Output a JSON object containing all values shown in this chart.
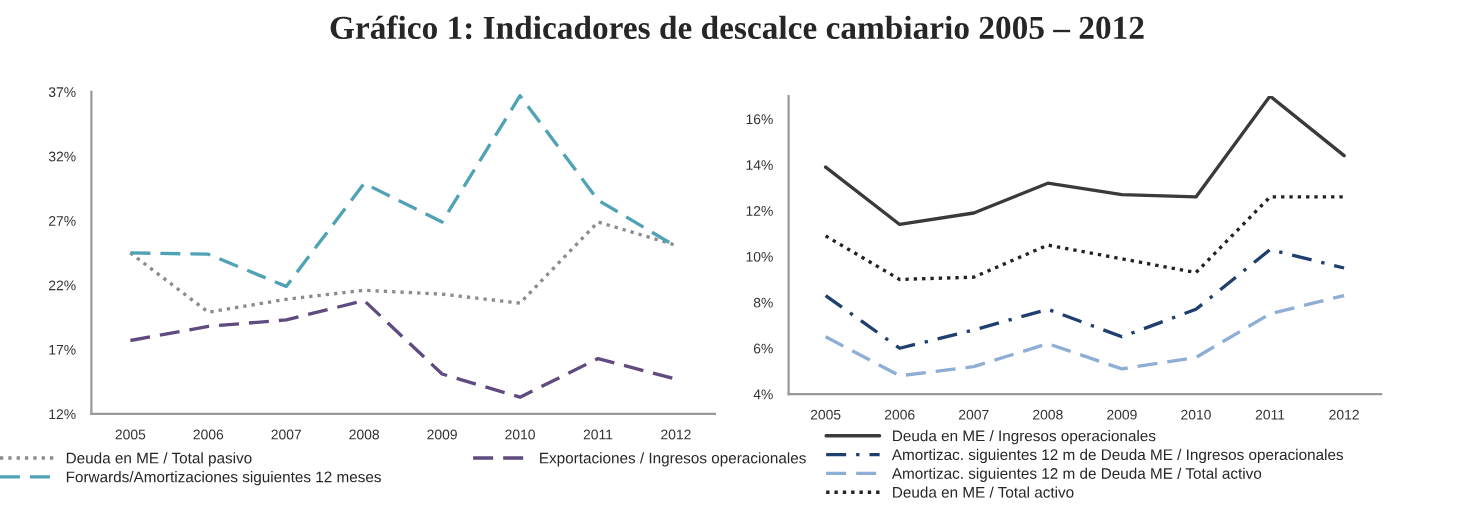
{
  "chart_data": [
    {
      "type": "line",
      "title": "Gráfico 1: Indicadores de descalce cambiario 2005 – 2012",
      "categories": [
        "2005",
        "2006",
        "2007",
        "2008",
        "2009",
        "2010",
        "2011",
        "2012"
      ],
      "ylim": [
        12,
        37
      ],
      "yticks": [
        {
          "value": 12,
          "label": "12%"
        },
        {
          "value": 17,
          "label": "17%"
        },
        {
          "value": 22,
          "label": "22%"
        },
        {
          "value": 27,
          "label": "27%"
        },
        {
          "value": 32,
          "label": "32%"
        },
        {
          "value": 37,
          "label": "37%"
        }
      ],
      "grid": false,
      "legend": "bottom",
      "marker": "none",
      "series": [
        {
          "name": "Deuda en ME / Total pasivo",
          "color": "#8c8c8c",
          "line_style": "dotted",
          "values": [
            24.5,
            19.9,
            20.9,
            21.6,
            21.3,
            20.6,
            26.9,
            25.1
          ]
        },
        {
          "name": "Forwards/Amortizaciones siguientes 12 meses",
          "color": "#4fa3b5",
          "line_style": "dashed",
          "values": [
            24.5,
            24.4,
            21.9,
            29.9,
            26.9,
            36.7,
            28.6,
            25.0
          ]
        },
        {
          "name": "Exportaciones / Ingresos operacionales",
          "color": "#5f4b80",
          "line_style": "dashed",
          "values": [
            17.7,
            18.8,
            19.3,
            20.8,
            15.1,
            13.3,
            16.3,
            14.7
          ]
        }
      ]
    },
    {
      "type": "line",
      "categories": [
        "2005",
        "2006",
        "2007",
        "2008",
        "2009",
        "2010",
        "2011",
        "2012"
      ],
      "ylim": [
        4,
        17
      ],
      "yticks": [
        {
          "value": 4,
          "label": "4%"
        },
        {
          "value": 6,
          "label": "6%"
        },
        {
          "value": 8,
          "label": "8%"
        },
        {
          "value": 10,
          "label": "10%"
        },
        {
          "value": 12,
          "label": "12%"
        },
        {
          "value": 14,
          "label": "14%"
        },
        {
          "value": 16,
          "label": "16%"
        }
      ],
      "grid": false,
      "legend": "bottom",
      "marker": "none",
      "series": [
        {
          "name": "Deuda en ME / Ingresos operacionales",
          "color": "#3a3a3a",
          "line_style": "solid",
          "values": [
            13.9,
            11.4,
            11.9,
            13.2,
            12.7,
            12.6,
            17.0,
            14.4
          ]
        },
        {
          "name": "Amortizac. siguientes 12 m de Deuda ME / Ingresos operacionales",
          "color": "#1f3f6e",
          "line_style": "dashdot",
          "values": [
            8.3,
            6.0,
            6.8,
            7.7,
            6.5,
            7.7,
            10.3,
            9.5
          ]
        },
        {
          "name": "Amortizac. siguientes 12 m de Deuda ME / Total activo",
          "color": "#8eaed6",
          "line_style": "dashed",
          "values": [
            6.5,
            4.8,
            5.2,
            6.2,
            5.1,
            5.6,
            7.5,
            8.3
          ]
        },
        {
          "name": "Deuda en ME / Total activo",
          "color": "#222222",
          "line_style": "dotted",
          "values": [
            10.9,
            9.0,
            9.1,
            10.5,
            9.9,
            9.3,
            12.6,
            12.6
          ]
        }
      ]
    }
  ]
}
